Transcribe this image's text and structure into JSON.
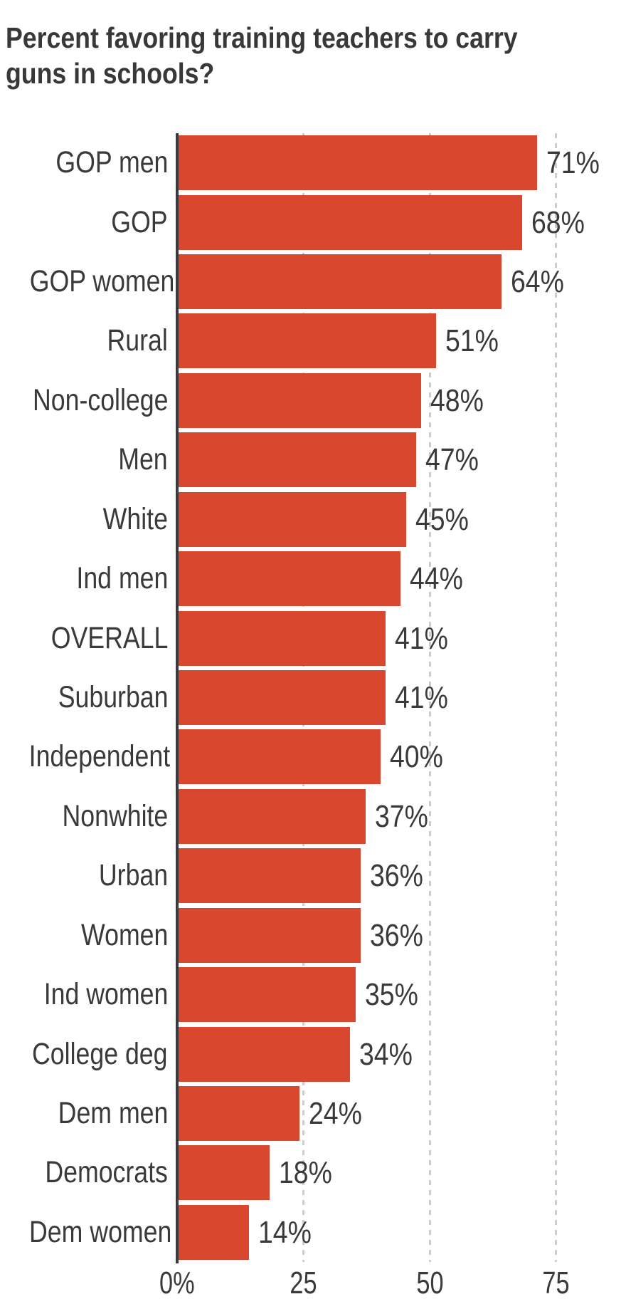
{
  "title": {
    "lines": [
      "Percent favoring training teachers to carry",
      "guns in schools?"
    ]
  },
  "chart_data": {
    "type": "bar",
    "orientation": "horizontal",
    "title": "Percent favoring training teachers to carry guns in schools?",
    "categories": [
      "GOP men",
      "GOP",
      "GOP women",
      "Rural",
      "Non-college",
      "Men",
      "White",
      "Ind men",
      "OVERALL",
      "Suburban",
      "Independent",
      "Nonwhite",
      "Urban",
      "Women",
      "Ind women",
      "College deg",
      "Dem men",
      "Democrats",
      "Dem women"
    ],
    "values": [
      71,
      68,
      64,
      51,
      48,
      47,
      45,
      44,
      41,
      41,
      40,
      37,
      36,
      36,
      35,
      34,
      24,
      18,
      14
    ],
    "value_labels": [
      "71%",
      "68%",
      "64%",
      "51%",
      "48%",
      "47%",
      "45%",
      "44%",
      "41%",
      "41%",
      "40%",
      "37%",
      "36%",
      "36%",
      "35%",
      "34%",
      "24%",
      "18%",
      "14%"
    ],
    "x_ticks": [
      {
        "value": 0,
        "label": "0%"
      },
      {
        "value": 25,
        "label": "25"
      },
      {
        "value": 50,
        "label": "50"
      },
      {
        "value": 75,
        "label": "75"
      }
    ],
    "xlim": [
      0,
      88
    ],
    "xlabel": "",
    "ylabel": "",
    "grid": true,
    "legend": null,
    "bar_color": "#d9472f",
    "axis_color": "#3b3b3b",
    "grid_color": "#cdcdcd",
    "text_color": "#3a3a3a"
  }
}
